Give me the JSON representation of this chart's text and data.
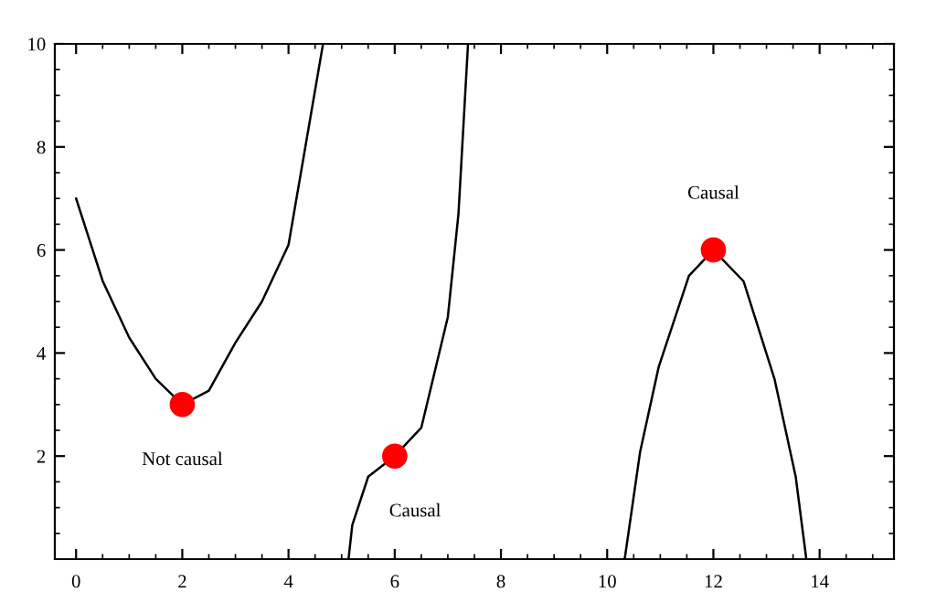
{
  "chart_data": {
    "type": "line",
    "xlim": [
      -0.4,
      15.4
    ],
    "ylim": [
      0,
      10
    ],
    "xticks": [
      0,
      2,
      4,
      6,
      8,
      10,
      12,
      14
    ],
    "yticks": [
      2,
      4,
      6,
      8,
      10
    ],
    "grid": false,
    "legend": false,
    "line_style": "solid",
    "series": [
      {
        "color": "#000000",
        "x": [
          0,
          0.5,
          1,
          1.5,
          2,
          2.5,
          3,
          3.5,
          4,
          4.3,
          4.65
        ],
        "values": [
          7.0,
          5.4,
          4.3,
          3.5,
          3.0,
          3.27,
          4.2,
          5.0,
          6.1,
          7.9,
          10
        ]
      },
      {
        "color": "#000000",
        "x": [
          5.13,
          5.2,
          5.5,
          6,
          6.5,
          7,
          7.2,
          7.38
        ],
        "values": [
          0,
          0.66,
          1.6,
          2.0,
          2.55,
          4.7,
          6.7,
          10
        ]
      },
      {
        "color": "#000000",
        "x": [
          10.33,
          10.62,
          10.97,
          11.54,
          12,
          12.57,
          13.15,
          13.55,
          13.75
        ],
        "values": [
          0,
          2.08,
          3.73,
          5.5,
          6.0,
          5.39,
          3.5,
          1.6,
          0
        ]
      },
      {
        "type": "scatter",
        "color": "#ff0000",
        "marker": "circle",
        "x": [
          2,
          6,
          12
        ],
        "values": [
          3,
          2,
          6
        ]
      }
    ],
    "annotations": [
      {
        "text": "Not causal",
        "x": 2,
        "y": 3
      },
      {
        "text": "Causal",
        "x": 6,
        "y": 2
      },
      {
        "text": "Causal",
        "x": 12,
        "y": 6
      }
    ]
  }
}
